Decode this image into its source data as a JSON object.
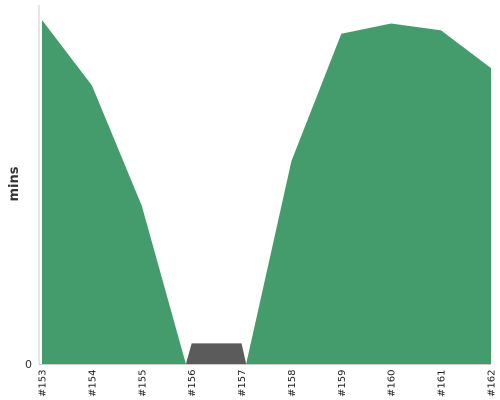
{
  "chart_data": {
    "type": "area",
    "title": "",
    "xlabel": "",
    "ylabel": "mins",
    "categories": [
      "#153",
      "#154",
      "#155",
      "#156",
      "#157",
      "#158",
      "#159",
      "#160",
      "#161",
      "#162"
    ],
    "values": [
      100,
      81,
      46,
      -6,
      -6,
      59,
      96,
      99,
      97,
      86
    ],
    "ylim": [
      0,
      100
    ],
    "yticks": [
      0
    ],
    "grid": false,
    "legend": "none",
    "colors": {
      "positive_fill": "#449c6c",
      "negative_fill": "#5b5b5b",
      "axis": "#cccccc"
    }
  }
}
